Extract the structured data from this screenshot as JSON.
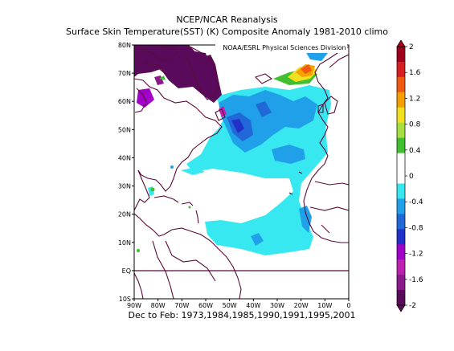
{
  "header": {
    "title": "NCEP/NCAR Reanalysis",
    "subtitle": "Surface Skin Temperature(SST) (K) Composite Anomaly 1981-2010 climo"
  },
  "map": {
    "credit": "NOAA/ESRL Physical Sciences Division",
    "lon_labels": [
      "90W",
      "80W",
      "70W",
      "60W",
      "50W",
      "40W",
      "30W",
      "20W",
      "10W",
      "0"
    ],
    "lat_labels": [
      "80N",
      "70N",
      "60N",
      "50N",
      "40N",
      "30N",
      "20N",
      "10N",
      "EQ",
      "10S"
    ],
    "lon_range": [
      -90,
      0
    ],
    "lat_range": [
      -10,
      80
    ],
    "footer": "Dec to Feb: 1973,1984,1985,1990,1991,1995,2001"
  },
  "colorbar": {
    "labels": [
      "2",
      "1.6",
      "1.2",
      "0.8",
      "0.4",
      "0",
      "-0.4",
      "-0.8",
      "-1.2",
      "-1.6",
      "-2"
    ],
    "colors": [
      "#a0001e",
      "#d62020",
      "#f05a10",
      "#f6a000",
      "#f0e020",
      "#a6e040",
      "#40c030",
      "#ffffff",
      "#ffffff",
      "#38e8f0",
      "#20a0e8",
      "#2068d8",
      "#2030c8",
      "#a000c8",
      "#c020b0",
      "#8a1a8a",
      "#5a0a5a"
    ]
  }
}
